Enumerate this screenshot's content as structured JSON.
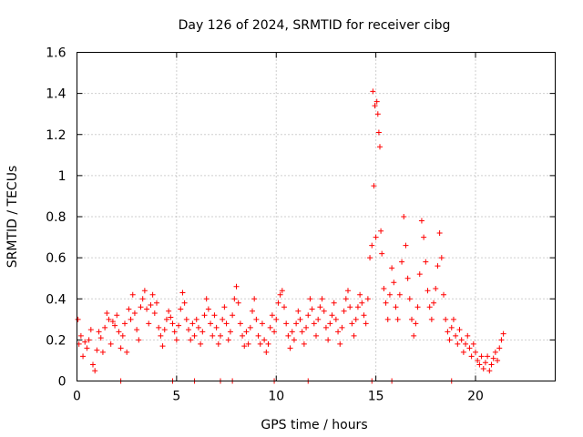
{
  "chart_data": {
    "type": "scatter",
    "title": "Day 126 of 2024, SRMTID for receiver cibg",
    "xlabel": "GPS time / hours",
    "ylabel": "SRMTID / TECUs",
    "xlim": [
      0,
      24
    ],
    "ylim": [
      0,
      1.6
    ],
    "xticks": [
      0,
      5,
      10,
      15,
      20
    ],
    "yticks": [
      0,
      0.2,
      0.4,
      0.6,
      0.8,
      1,
      1.2,
      1.4,
      1.6
    ],
    "xtick_labels": [
      "0",
      "5",
      "10",
      "15",
      "20"
    ],
    "ytick_labels": [
      "0",
      "0.2",
      "0.4",
      "0.6",
      "0.8",
      "1",
      "1.2",
      "1.4",
      "1.6"
    ],
    "grid": true,
    "marker": "+",
    "color": "#ff0000",
    "series": [
      {
        "name": "SRMTID",
        "points": [
          [
            0.05,
            0.3
          ],
          [
            0.1,
            0.18
          ],
          [
            0.2,
            0.22
          ],
          [
            0.3,
            0.12
          ],
          [
            0.4,
            0.19
          ],
          [
            0.5,
            0.16
          ],
          [
            0.6,
            0.2
          ],
          [
            0.7,
            0.25
          ],
          [
            0.8,
            0.08
          ],
          [
            0.9,
            0.05
          ],
          [
            1.0,
            0.15
          ],
          [
            1.1,
            0.24
          ],
          [
            1.2,
            0.21
          ],
          [
            1.3,
            0.14
          ],
          [
            1.4,
            0.26
          ],
          [
            1.5,
            0.33
          ],
          [
            1.6,
            0.3
          ],
          [
            1.7,
            0.18
          ],
          [
            1.8,
            0.29
          ],
          [
            1.9,
            0.27
          ],
          [
            2.0,
            0.32
          ],
          [
            2.1,
            0.24
          ],
          [
            2.2,
            0.16
          ],
          [
            2.3,
            0.22
          ],
          [
            2.4,
            0.28
          ],
          [
            2.5,
            0.14
          ],
          [
            2.6,
            0.35
          ],
          [
            2.7,
            0.3
          ],
          [
            2.8,
            0.42
          ],
          [
            2.9,
            0.33
          ],
          [
            3.0,
            0.25
          ],
          [
            3.1,
            0.2
          ],
          [
            3.2,
            0.36
          ],
          [
            3.3,
            0.4
          ],
          [
            3.4,
            0.44
          ],
          [
            3.5,
            0.35
          ],
          [
            3.6,
            0.28
          ],
          [
            3.7,
            0.37
          ],
          [
            3.8,
            0.42
          ],
          [
            3.9,
            0.33
          ],
          [
            4.0,
            0.38
          ],
          [
            4.1,
            0.26
          ],
          [
            4.2,
            0.22
          ],
          [
            4.3,
            0.17
          ],
          [
            4.4,
            0.25
          ],
          [
            4.5,
            0.3
          ],
          [
            4.6,
            0.34
          ],
          [
            4.7,
            0.31
          ],
          [
            4.8,
            0.28
          ],
          [
            4.9,
            0.24
          ],
          [
            5.0,
            0.2
          ],
          [
            5.1,
            0.27
          ],
          [
            5.2,
            0.35
          ],
          [
            5.3,
            0.43
          ],
          [
            5.4,
            0.38
          ],
          [
            5.5,
            0.3
          ],
          [
            5.6,
            0.25
          ],
          [
            5.7,
            0.2
          ],
          [
            5.8,
            0.28
          ],
          [
            5.9,
            0.22
          ],
          [
            6.0,
            0.3
          ],
          [
            6.1,
            0.26
          ],
          [
            6.2,
            0.18
          ],
          [
            6.3,
            0.24
          ],
          [
            6.4,
            0.32
          ],
          [
            6.5,
            0.4
          ],
          [
            6.6,
            0.35
          ],
          [
            6.7,
            0.28
          ],
          [
            6.8,
            0.22
          ],
          [
            6.9,
            0.32
          ],
          [
            7.0,
            0.26
          ],
          [
            7.1,
            0.18
          ],
          [
            7.2,
            0.22
          ],
          [
            7.3,
            0.3
          ],
          [
            7.4,
            0.36
          ],
          [
            7.5,
            0.28
          ],
          [
            7.6,
            0.2
          ],
          [
            7.7,
            0.24
          ],
          [
            7.8,
            0.32
          ],
          [
            7.9,
            0.4
          ],
          [
            8.0,
            0.46
          ],
          [
            8.1,
            0.38
          ],
          [
            8.2,
            0.28
          ],
          [
            8.3,
            0.22
          ],
          [
            8.4,
            0.17
          ],
          [
            8.5,
            0.24
          ],
          [
            8.6,
            0.18
          ],
          [
            8.7,
            0.26
          ],
          [
            8.8,
            0.34
          ],
          [
            8.9,
            0.4
          ],
          [
            9.0,
            0.3
          ],
          [
            9.1,
            0.22
          ],
          [
            9.2,
            0.18
          ],
          [
            9.3,
            0.28
          ],
          [
            9.4,
            0.2
          ],
          [
            9.5,
            0.14
          ],
          [
            9.6,
            0.18
          ],
          [
            9.7,
            0.26
          ],
          [
            9.8,
            0.32
          ],
          [
            9.9,
            0.24
          ],
          [
            10.0,
            0.3
          ],
          [
            10.1,
            0.38
          ],
          [
            10.2,
            0.42
          ],
          [
            10.3,
            0.44
          ],
          [
            10.4,
            0.36
          ],
          [
            10.5,
            0.28
          ],
          [
            10.6,
            0.22
          ],
          [
            10.7,
            0.16
          ],
          [
            10.8,
            0.24
          ],
          [
            10.9,
            0.2
          ],
          [
            11.0,
            0.28
          ],
          [
            11.1,
            0.34
          ],
          [
            11.2,
            0.3
          ],
          [
            11.3,
            0.24
          ],
          [
            11.4,
            0.18
          ],
          [
            11.5,
            0.26
          ],
          [
            11.6,
            0.32
          ],
          [
            11.7,
            0.4
          ],
          [
            11.8,
            0.35
          ],
          [
            11.9,
            0.28
          ],
          [
            12.0,
            0.22
          ],
          [
            12.1,
            0.3
          ],
          [
            12.2,
            0.36
          ],
          [
            12.3,
            0.4
          ],
          [
            12.4,
            0.34
          ],
          [
            12.5,
            0.26
          ],
          [
            12.6,
            0.2
          ],
          [
            12.7,
            0.28
          ],
          [
            12.8,
            0.32
          ],
          [
            12.9,
            0.38
          ],
          [
            13.0,
            0.3
          ],
          [
            13.1,
            0.24
          ],
          [
            13.2,
            0.18
          ],
          [
            13.3,
            0.26
          ],
          [
            13.4,
            0.34
          ],
          [
            13.5,
            0.4
          ],
          [
            13.6,
            0.44
          ],
          [
            13.7,
            0.36
          ],
          [
            13.8,
            0.28
          ],
          [
            13.9,
            0.22
          ],
          [
            14.0,
            0.3
          ],
          [
            14.1,
            0.36
          ],
          [
            14.2,
            0.42
          ],
          [
            14.3,
            0.38
          ],
          [
            14.4,
            0.32
          ],
          [
            14.5,
            0.28
          ],
          [
            14.6,
            0.4
          ],
          [
            14.7,
            0.6
          ],
          [
            14.8,
            0.66
          ],
          [
            14.85,
            1.41
          ],
          [
            14.9,
            0.95
          ],
          [
            14.95,
            1.34
          ],
          [
            15.0,
            0.7
          ],
          [
            15.05,
            1.36
          ],
          [
            15.1,
            1.3
          ],
          [
            15.15,
            1.21
          ],
          [
            15.2,
            1.14
          ],
          [
            15.25,
            0.73
          ],
          [
            15.3,
            0.62
          ],
          [
            15.4,
            0.45
          ],
          [
            15.5,
            0.38
          ],
          [
            15.6,
            0.3
          ],
          [
            15.7,
            0.42
          ],
          [
            15.8,
            0.55
          ],
          [
            15.9,
            0.48
          ],
          [
            16.0,
            0.36
          ],
          [
            16.1,
            0.3
          ],
          [
            16.2,
            0.42
          ],
          [
            16.3,
            0.58
          ],
          [
            16.4,
            0.8
          ],
          [
            16.5,
            0.66
          ],
          [
            16.6,
            0.5
          ],
          [
            16.7,
            0.4
          ],
          [
            16.8,
            0.3
          ],
          [
            16.9,
            0.22
          ],
          [
            17.0,
            0.28
          ],
          [
            17.1,
            0.36
          ],
          [
            17.2,
            0.52
          ],
          [
            17.3,
            0.78
          ],
          [
            17.4,
            0.7
          ],
          [
            17.5,
            0.58
          ],
          [
            17.6,
            0.44
          ],
          [
            17.7,
            0.36
          ],
          [
            17.8,
            0.3
          ],
          [
            17.9,
            0.38
          ],
          [
            18.0,
            0.45
          ],
          [
            18.1,
            0.56
          ],
          [
            18.2,
            0.72
          ],
          [
            18.3,
            0.6
          ],
          [
            18.4,
            0.42
          ],
          [
            18.5,
            0.3
          ],
          [
            18.6,
            0.24
          ],
          [
            18.7,
            0.2
          ],
          [
            18.8,
            0.26
          ],
          [
            18.9,
            0.3
          ],
          [
            19.0,
            0.22
          ],
          [
            19.1,
            0.18
          ],
          [
            19.2,
            0.25
          ],
          [
            19.3,
            0.2
          ],
          [
            19.4,
            0.14
          ],
          [
            19.5,
            0.18
          ],
          [
            19.6,
            0.22
          ],
          [
            19.7,
            0.16
          ],
          [
            19.8,
            0.12
          ],
          [
            19.9,
            0.18
          ],
          [
            20.0,
            0.14
          ],
          [
            20.1,
            0.1
          ],
          [
            20.2,
            0.08
          ],
          [
            20.3,
            0.12
          ],
          [
            20.4,
            0.06
          ],
          [
            20.5,
            0.09
          ],
          [
            20.6,
            0.12
          ],
          [
            20.7,
            0.05
          ],
          [
            20.8,
            0.08
          ],
          [
            20.9,
            0.11
          ],
          [
            21.0,
            0.14
          ],
          [
            21.1,
            0.1
          ],
          [
            21.2,
            0.16
          ],
          [
            21.3,
            0.2
          ],
          [
            21.4,
            0.23
          ]
        ],
        "zero_points": [
          2.2,
          4.8,
          5.9,
          7.2,
          7.8,
          9.9,
          11.6,
          14.8,
          15.8,
          18.8
        ]
      }
    ]
  }
}
